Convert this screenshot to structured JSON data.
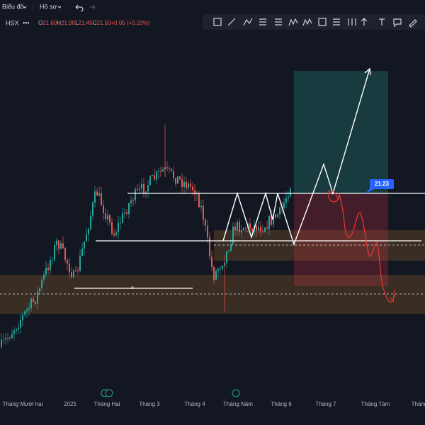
{
  "toolbar": {
    "chart_menu": "Biểu đồ",
    "profile_menu": "Hồ sơ"
  },
  "legend": {
    "symbol": "HSX",
    "ohlc": [
      {
        "key": "O",
        "value": "21.60"
      },
      {
        "key": "H",
        "value": "21.90"
      },
      {
        "key": "L",
        "value": "21.45"
      },
      {
        "key": "C",
        "value": "21.50"
      }
    ],
    "change": "+0.05 (+0.23%)"
  },
  "price_label": "21.23",
  "x_axis": [
    "Tháng Mười hai",
    "2025",
    "Tháng Hai",
    "Tháng 3",
    "Tháng 4",
    "Tháng Năm",
    "Tháng 6",
    "Tháng 7",
    "Tháng Tám",
    "Tháng"
  ]
}
